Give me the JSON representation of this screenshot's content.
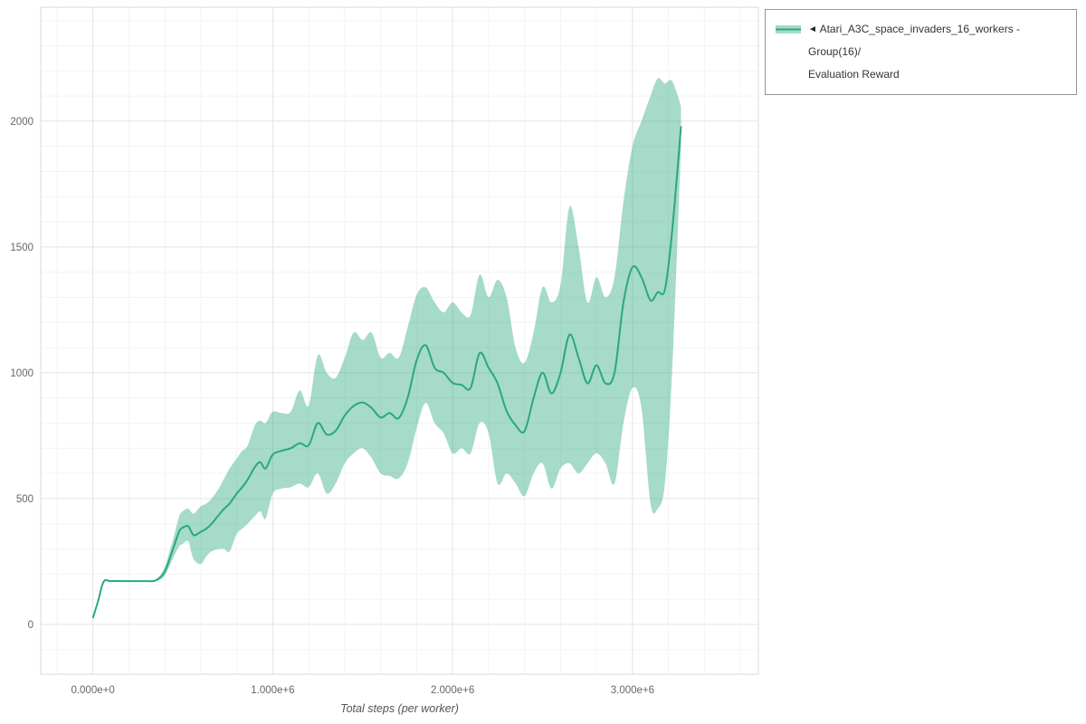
{
  "page": {
    "background": "#ffffff"
  },
  "legend": {
    "marker": "◄",
    "line1": "Atari_A3C_space_invaders_16_workers - Group(16)/",
    "line2": "Evaluation Reward",
    "border_color": "#949494"
  },
  "chart_data": {
    "type": "line",
    "title": "",
    "xlabel": "Total steps (per worker)",
    "ylabel": "",
    "series_name": "Atari_A3C_space_invaders_16_workers - Group(16)/Evaluation Reward",
    "line_color": "#2aa87e",
    "band_fill_color": "#2aa87e",
    "band_opacity": 0.42,
    "grid": true,
    "legend_position": "top-right",
    "x_scale": 1000000,
    "xlim_e6": [
      -0.29,
      3.7
    ],
    "ylim": [
      -198,
      2453
    ],
    "x_tick_values_e6": [
      0,
      1,
      2,
      3
    ],
    "x_tick_labels": [
      "0.000e+0",
      "1.000e+6",
      "2.000e+6",
      "3.000e+6"
    ],
    "y_tick_values": [
      0,
      500,
      1000,
      1500,
      2000
    ],
    "y_tick_labels": [
      "0",
      "500",
      "1000",
      "1500",
      "2000"
    ],
    "x_e6": [
      0.0,
      0.03,
      0.06,
      0.1,
      0.2,
      0.3,
      0.35,
      0.4,
      0.45,
      0.48,
      0.5,
      0.53,
      0.56,
      0.6,
      0.63,
      0.66,
      0.7,
      0.73,
      0.76,
      0.8,
      0.83,
      0.86,
      0.9,
      0.93,
      0.96,
      1.0,
      1.05,
      1.1,
      1.15,
      1.2,
      1.25,
      1.3,
      1.35,
      1.4,
      1.45,
      1.5,
      1.55,
      1.6,
      1.65,
      1.7,
      1.75,
      1.8,
      1.85,
      1.9,
      1.95,
      2.0,
      2.05,
      2.1,
      2.15,
      2.2,
      2.25,
      2.3,
      2.35,
      2.4,
      2.45,
      2.5,
      2.55,
      2.6,
      2.65,
      2.7,
      2.75,
      2.8,
      2.85,
      2.9,
      2.95,
      3.0,
      3.05,
      3.1,
      3.14,
      3.18,
      3.22,
      3.27
    ],
    "mean": [
      25,
      95,
      170,
      172,
      172,
      172,
      175,
      210,
      310,
      370,
      385,
      390,
      355,
      368,
      380,
      400,
      435,
      460,
      480,
      520,
      545,
      575,
      625,
      645,
      620,
      675,
      690,
      700,
      720,
      712,
      800,
      755,
      770,
      830,
      868,
      882,
      860,
      822,
      840,
      820,
      900,
      1050,
      1110,
      1020,
      1000,
      960,
      952,
      940,
      1078,
      1020,
      958,
      848,
      792,
      768,
      900,
      1000,
      918,
      1000,
      1152,
      1060,
      958,
      1030,
      958,
      1000,
      1280,
      1420,
      1380,
      1288,
      1320,
      1330,
      1560,
      1980
    ],
    "lower": [
      25,
      95,
      168,
      170,
      170,
      170,
      172,
      195,
      270,
      310,
      320,
      330,
      260,
      240,
      270,
      290,
      300,
      300,
      290,
      360,
      380,
      400,
      430,
      450,
      420,
      520,
      540,
      545,
      560,
      545,
      600,
      520,
      560,
      640,
      680,
      700,
      660,
      600,
      590,
      580,
      640,
      780,
      880,
      800,
      760,
      680,
      700,
      680,
      800,
      760,
      560,
      600,
      560,
      510,
      600,
      640,
      540,
      620,
      640,
      600,
      640,
      680,
      640,
      560,
      800,
      940,
      860,
      480,
      460,
      560,
      1000,
      1900
    ],
    "upper": [
      25,
      95,
      172,
      174,
      174,
      174,
      178,
      230,
      350,
      430,
      450,
      460,
      440,
      470,
      480,
      500,
      540,
      580,
      620,
      660,
      690,
      710,
      790,
      810,
      800,
      845,
      840,
      845,
      930,
      870,
      1070,
      1000,
      980,
      1060,
      1160,
      1130,
      1160,
      1060,
      1080,
      1060,
      1180,
      1310,
      1340,
      1280,
      1240,
      1280,
      1240,
      1230,
      1390,
      1300,
      1370,
      1300,
      1100,
      1040,
      1160,
      1340,
      1280,
      1350,
      1660,
      1500,
      1280,
      1380,
      1300,
      1380,
      1680,
      1900,
      2000,
      2100,
      2170,
      2150,
      2160,
      2060
    ]
  }
}
